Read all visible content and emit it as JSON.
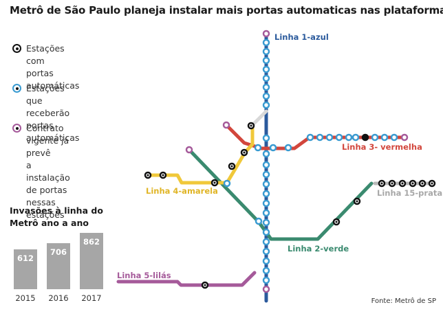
{
  "title": "Metrô de São Paulo planeja instalar mais portas automaticas nas plataformas",
  "legend": [
    {
      "kind": "automatic",
      "text": "Estações com\nportas automáticas",
      "color": "#111111"
    },
    {
      "kind": "planned",
      "text": "Estações que receberão\nportas automáticas",
      "color": "#3a9bd1"
    },
    {
      "kind": "contract",
      "text": "Contrato vigente já prevê\na instalação de portas\nnessas estações",
      "color": "#a55a9a"
    }
  ],
  "lines": [
    {
      "id": "linha-1",
      "label": "Linha 1-azul",
      "color": "#2b5a9c"
    },
    {
      "id": "linha-2",
      "label": "Linha 2-verde",
      "color": "#3a8a6f"
    },
    {
      "id": "linha-3",
      "label": "Linha 3- vermelha",
      "color": "#d2463c"
    },
    {
      "id": "linha-4",
      "label": "Linha 4-amarela",
      "color": "#f0c83a"
    },
    {
      "id": "linha-5",
      "label": "Linha 5-lilás",
      "color": "#a55a9a"
    },
    {
      "id": "linha-15",
      "label": "Linha 15-prata",
      "color": "#b8b8b8"
    }
  ],
  "bar_title": "Invasões à linha do\nMetrô ano a ano",
  "chart_data": {
    "type": "bar",
    "title": "Invasões à linha do Metrô ano a ano",
    "categories": [
      "2015",
      "2016",
      "2017"
    ],
    "values": [
      612,
      706,
      862
    ],
    "ylim": [
      0,
      862
    ],
    "bar_color": "#a6a6a6"
  },
  "source": "Fonte: Metrô de SP"
}
